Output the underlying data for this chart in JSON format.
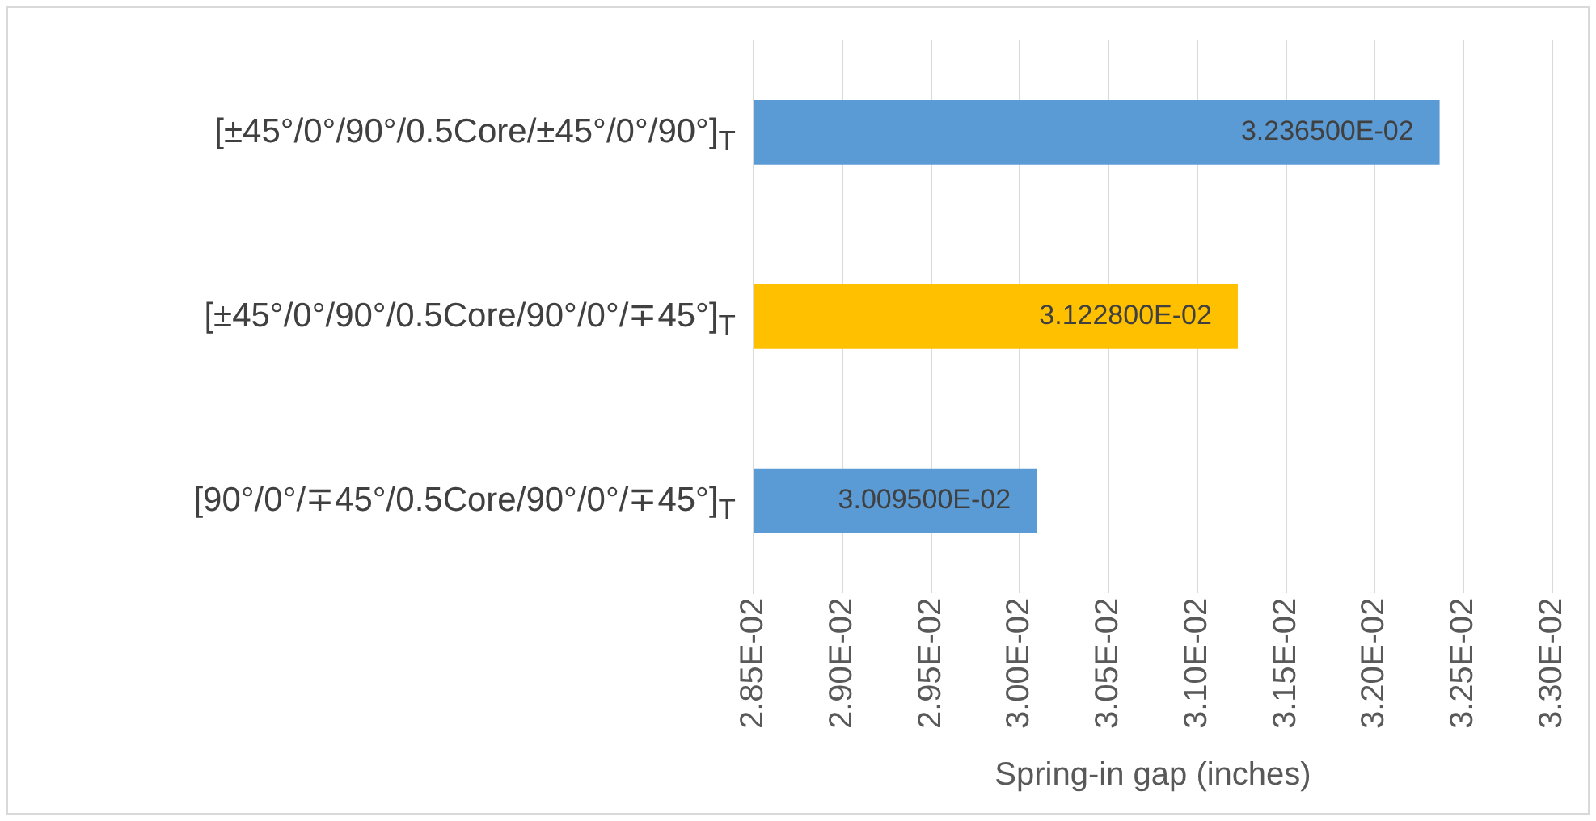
{
  "chart_data": {
    "type": "bar",
    "orientation": "horizontal",
    "xlabel": "Spring-in gap (inches)",
    "categories": [
      "[±45°/0°/90°/0.5Core/±45°/0°/90°]$_{T}$",
      "[±45°/0°/90°/0.5Core/90°/0°/∓45°]$_{T}$",
      "[90°/0°/∓45°/0.5Core/90°/0°/∓45°]$_{T}$"
    ],
    "values": [
      0.032365,
      0.031228,
      0.030095
    ],
    "colors": [
      "#5b9bd5",
      "#ffc000",
      "#5b9bd5"
    ],
    "value_labels": [
      "3.236500E-02",
      "3.122800E-02",
      "3.009500E-02"
    ],
    "xlim": [
      0.0285,
      0.033
    ],
    "xticks": [
      {
        "value": 0.0285,
        "label": "2.85E-02"
      },
      {
        "value": 0.029,
        "label": "2.90E-02"
      },
      {
        "value": 0.0295,
        "label": "2.95E-02"
      },
      {
        "value": 0.03,
        "label": "3.00E-02"
      },
      {
        "value": 0.0305,
        "label": "3.05E-02"
      },
      {
        "value": 0.031,
        "label": "3.10E-02"
      },
      {
        "value": 0.0315,
        "label": "3.15E-02"
      },
      {
        "value": 0.032,
        "label": "3.20E-02"
      },
      {
        "value": 0.0325,
        "label": "3.25E-02"
      },
      {
        "value": 0.033,
        "label": "3.30E-02"
      }
    ],
    "grid": "x"
  }
}
